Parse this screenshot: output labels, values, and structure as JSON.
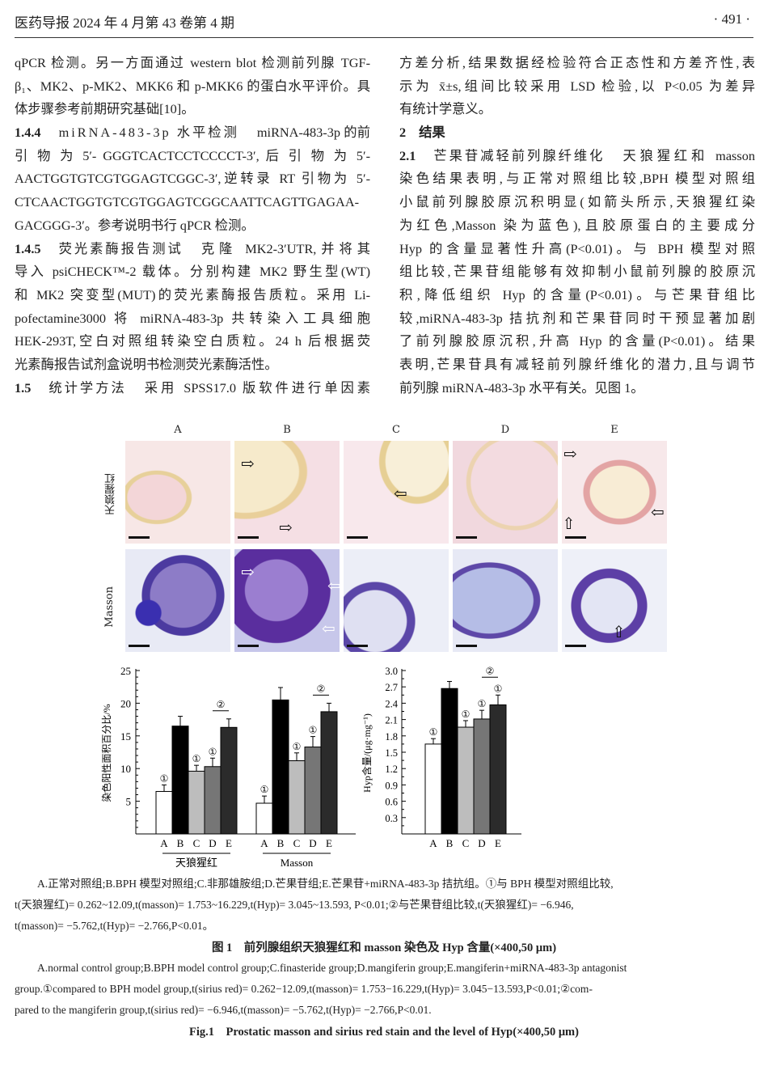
{
  "header": {
    "journal": "医药导报 2024 年 4 月第 43 卷第 4 期",
    "page": "· 491 ·"
  },
  "left_lines": [
    {
      "t": "qPCR 检测。另一方面通过 western blot 检测前列腺 TGF-"
    },
    {
      "t": "β₁、MK2、p-MK2、MKK6 和 p-MKK6 的蛋白水平评价。具"
    },
    {
      "t": "体步骤参考前期研究基础[10]。",
      "last": true
    },
    {
      "b": "1.4.4",
      "h": "miRNA-483-3p 水平检测",
      "t": "miRNA-483-3p 的前"
    },
    {
      "t": "引 物 为 5′- GGGTCACTCCTCCCCT-3′, 后 引 物 为 5′-"
    },
    {
      "t": "AACTGGTGTCGTGGAGTCGGC-3′,逆转录 RT 引物为 5′-"
    },
    {
      "t": "CTCAACTGGTGTCGTGGAGTCGGCAATTCAGTTGAGAA-"
    },
    {
      "t": "GACGGG-3′。参考说明书行 qPCR 检测。",
      "last": true
    },
    {
      "b": "1.4.5",
      "h": "荧光素酶报告测试",
      "t": "克隆 MK2-3′UTR,并将其"
    },
    {
      "t": "导入 psiCHECK™-2 载体。分别构建 MK2 野生型(WT)"
    },
    {
      "t": "和 MK2 突变型(MUT)的荧光素酶报告质粒。采用 Li-"
    },
    {
      "t": "pofectamine3000 将 miRNA-483-3p 共转染入工具细胞"
    },
    {
      "t": "HEK-293T,空白对照组转染空白质粒。24 h 后根据荧"
    },
    {
      "t": "光素酶报告试剂盒说明书检测荧光素酶活性。",
      "last": true
    },
    {
      "b": "1.5",
      "h": "统计学方法",
      "t": "采用 SPSS17.0 版软件进行单因素"
    }
  ],
  "right_lines": [
    {
      "t": "方差分析,结果数据经检验符合正态性和方差齐性,表"
    },
    {
      "t": "示为 x̄±s,组间比较采用 LSD 检验,以 P<0.05 为差异"
    },
    {
      "t": "有统计学意义。",
      "last": true
    },
    {
      "b": "2",
      "t": "结果",
      "last": true
    },
    {
      "b": "2.1",
      "h": "芒果苷减轻前列腺纤维化",
      "t": "天狼猩红和 masson"
    },
    {
      "t": "染色结果表明,与正常对照组比较,BPH 模型对照组"
    },
    {
      "t": "小鼠前列腺胶原沉积明显(如箭头所示,天狼猩红染"
    },
    {
      "t": "为红色,Masson 染为蓝色),且胶原蛋白的主要成分"
    },
    {
      "t": "Hyp 的含量显著性升高(P<0.01)。与 BPH 模型对照"
    },
    {
      "t": "组比较,芒果苷组能够有效抑制小鼠前列腺的胶原沉"
    },
    {
      "t": "积,降低组织 Hyp 的含量(P<0.01)。与芒果苷组比"
    },
    {
      "t": "较,miRNA-483-3p 拮抗剂和芒果苷同时干预显著加剧"
    },
    {
      "t": "了前列腺胶原沉积,升高 Hyp 的含量(P<0.01)。结果"
    },
    {
      "t": "表明,芒果苷具有减轻前列腺纤维化的潜力,且与调节"
    },
    {
      "t": "前列腺 miRNA-483-3p 水平有关。见图 1。",
      "last": true
    }
  ],
  "figure": {
    "columns": [
      "A",
      "B",
      "C",
      "D",
      "E"
    ],
    "rows": [
      "天狼猩红",
      "Masson"
    ],
    "caption_cn": [
      "A.正常对照组;B.BPH 模型对照组;C.非那雄胺组;D.芒果苷组;E.芒果苷+miRNA-483-3p 拮抗组。①与 BPH 模型对照组比较,",
      "t(天狼猩红)= 0.262~12.09,t(masson)= 1.753~16.229,t(Hyp)= 3.045~13.593, P<0.01;②与芒果苷组比较,t(天狼猩红)= −6.946,",
      "t(masson)= −5.762,t(Hyp)= −2.766,P<0.01。"
    ],
    "title_cn": "图 1　前列腺组织天狼猩红和 masson 染色及 Hyp 含量(×400,50 μm)",
    "caption_en": [
      "A.normal control group;B.BPH model control group;C.finasteride group;D.mangiferin group;E.mangiferin+miRNA-483-3p antagonist",
      "group.①compared to BPH model group,t(sirius red)= 0.262−12.09,t(masson)= 1.753−16.229,t(Hyp)= 3.045−13.593,P<0.01;②com-",
      "pared to the mangiferin group,t(sirius red)= −6.946,t(masson)= −5.762,t(Hyp)= −2.766,P<0.01."
    ],
    "title_en": "Fig.1　Prostatic masson and sirius red stain and the level of Hyp(×400,50 μm)"
  },
  "chart_data": [
    {
      "type": "bar",
      "ylabel": "染色阳性面积百分比/%",
      "ylim": [
        0,
        25
      ],
      "yticks": [
        5,
        10,
        15,
        20,
        25
      ],
      "categories": [
        "A",
        "B",
        "C",
        "D",
        "E"
      ],
      "groups": [
        {
          "name": "天狼猩红",
          "values": [
            6.5,
            16.5,
            9.6,
            10.3,
            16.3
          ],
          "errors": [
            1.0,
            1.5,
            0.9,
            1.3,
            1.3
          ],
          "marks": [
            "①",
            "",
            "①",
            "①",
            ""
          ]
        },
        {
          "name": "Masson",
          "values": [
            4.7,
            20.5,
            11.2,
            13.3,
            18.7
          ],
          "errors": [
            1.1,
            1.9,
            1.2,
            1.6,
            1.3
          ],
          "marks": [
            "①",
            "",
            "①",
            "①",
            ""
          ]
        }
      ],
      "bracket": "②",
      "colors": [
        "#ffffff",
        "#000000",
        "#bdbdbd",
        "#767676",
        "#2b2b2b"
      ]
    },
    {
      "type": "bar",
      "ylabel": "Hyp含量/(μg·mg⁻¹)",
      "ylim": [
        0,
        3.0
      ],
      "yticks": [
        "0.3",
        "0.6",
        "0.9",
        "1.2",
        "1.5",
        "1.8",
        "2.1",
        "2.4",
        "2.7",
        "3.0"
      ],
      "categories": [
        "A",
        "B",
        "C",
        "D",
        "E"
      ],
      "values": [
        1.65,
        2.67,
        1.96,
        2.11,
        2.37
      ],
      "errors": [
        0.1,
        0.13,
        0.12,
        0.16,
        0.18
      ],
      "marks": [
        "①",
        "",
        "①",
        "①",
        "①"
      ],
      "bracket": "②",
      "colors": [
        "#ffffff",
        "#000000",
        "#bdbdbd",
        "#767676",
        "#2b2b2b"
      ]
    }
  ]
}
